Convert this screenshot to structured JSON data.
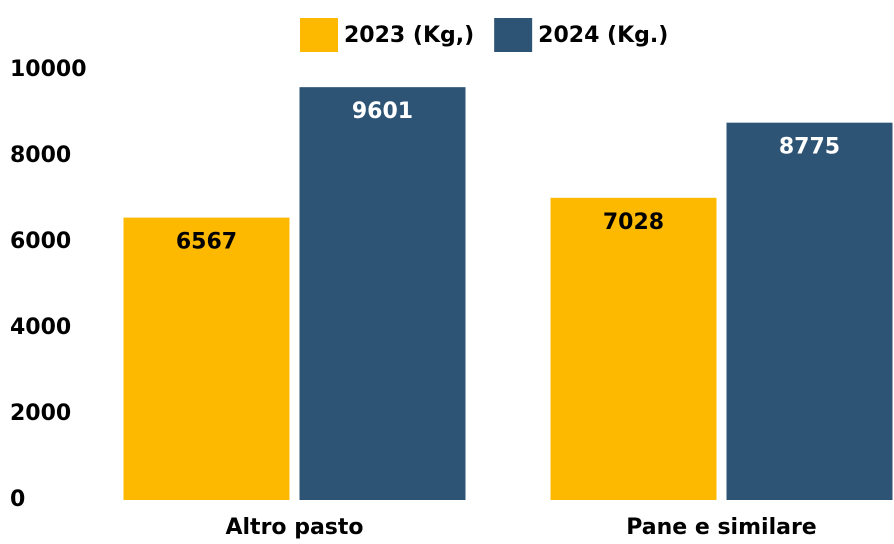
{
  "chart_data": {
    "type": "bar",
    "categories": [
      "Altro pasto",
      "Pane e similare"
    ],
    "series": [
      {
        "name": "2023 (Kg,)",
        "color": "#fdb900",
        "values": [
          6567,
          7028
        ]
      },
      {
        "name": "2024 (Kg.)",
        "color": "#2e5475",
        "values": [
          9601,
          8775
        ]
      }
    ],
    "ylim": [
      0,
      10000
    ],
    "yticks": [
      0,
      2000,
      4000,
      6000,
      8000,
      10000
    ],
    "grid": false,
    "legend": "top"
  }
}
